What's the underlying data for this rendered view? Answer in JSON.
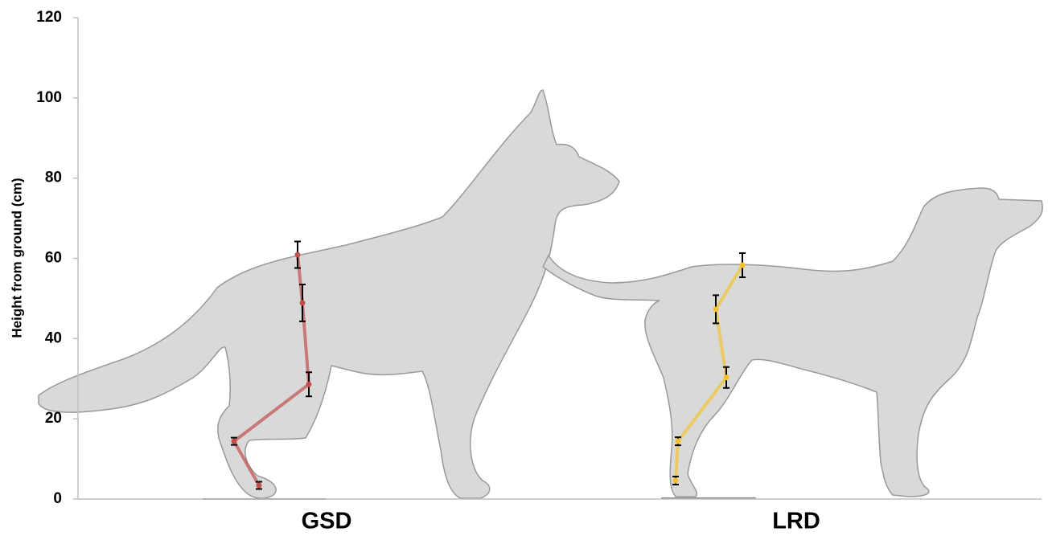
{
  "chart_data": {
    "type": "scatter",
    "y_label": "Height from ground (cm)",
    "categories": [
      "GSD",
      "LRD"
    ],
    "ylim": [
      0,
      120
    ],
    "yticks": [
      0,
      20,
      40,
      60,
      80,
      100,
      120
    ],
    "series": [
      {
        "color": "#c0504d",
        "values": [
          60.9,
          48.9,
          28.6,
          14.4,
          3.4
        ],
        "errors": [
          3.3,
          4.6,
          3.0,
          0.9,
          0.9
        ]
      },
      {
        "color": "#f2c230",
        "values": [
          58.3,
          47.3,
          30.3,
          14.4,
          4.6
        ],
        "errors": [
          3.0,
          3.5,
          2.6,
          1.0,
          1.0
        ]
      }
    ]
  }
}
